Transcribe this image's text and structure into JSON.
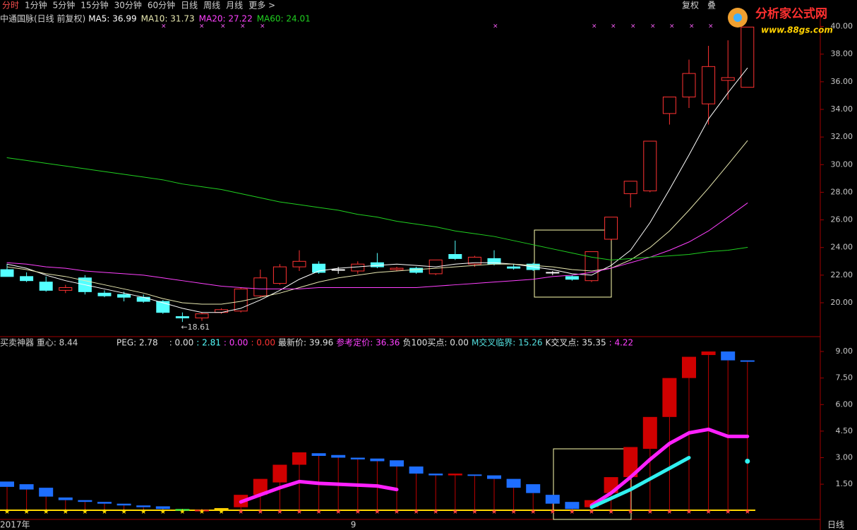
{
  "menu": {
    "tabs": [
      "分时",
      "1分钟",
      "5分钟",
      "15分钟",
      "30分钟",
      "60分钟",
      "日线",
      "周线",
      "月线",
      "更多 >"
    ],
    "right": [
      "复权",
      "叠"
    ]
  },
  "logo": {
    "name": "分析家公式网",
    "url": "www.88gs.com"
  },
  "chart_data": [
    {
      "type": "candlestick",
      "title": "中通国脉(日线 前复权)",
      "open": [
        22.4,
        21.9,
        21.5,
        20.9,
        21.8,
        20.7,
        20.6,
        20.4,
        20.1,
        19.0,
        18.9,
        19.3,
        19.4,
        20.5,
        21.4,
        22.6,
        22.8,
        22.4,
        22.3,
        22.9,
        22.4,
        22.5,
        22.1,
        23.5,
        22.8,
        23.2,
        22.6,
        22.8,
        22.2,
        21.9,
        21.6,
        24.6,
        27.9,
        28.1,
        33.7,
        34.9,
        34.4,
        36.1,
        35.6
      ],
      "high": [
        22.8,
        22.2,
        21.9,
        21.3,
        22.0,
        20.9,
        20.8,
        20.6,
        20.2,
        19.3,
        19.3,
        19.6,
        21.1,
        22.4,
        22.8,
        23.8,
        23.0,
        22.6,
        23.0,
        23.6,
        22.6,
        22.6,
        23.1,
        24.5,
        23.4,
        23.8,
        22.8,
        22.9,
        22.3,
        22.0,
        23.7,
        26.2,
        28.8,
        31.7,
        34.9,
        37.6,
        38.6,
        39.0,
        39.96
      ],
      "low": [
        21.9,
        21.5,
        20.8,
        20.7,
        20.6,
        20.4,
        20.1,
        20.0,
        19.2,
        18.61,
        18.7,
        19.2,
        19.3,
        20.4,
        21.3,
        22.3,
        22.1,
        22.1,
        22.1,
        22.5,
        22.3,
        22.1,
        22.0,
        23.1,
        22.6,
        22.7,
        22.4,
        22.3,
        22.0,
        21.6,
        21.5,
        24.5,
        26.9,
        28.0,
        32.9,
        34.1,
        32.9,
        34.7,
        35.6
      ],
      "close": [
        21.9,
        21.6,
        20.9,
        21.1,
        20.8,
        20.5,
        20.4,
        20.1,
        19.3,
        18.9,
        19.2,
        19.5,
        21.0,
        21.8,
        22.6,
        23.0,
        22.2,
        22.4,
        22.8,
        22.6,
        22.5,
        22.2,
        23.1,
        23.2,
        23.3,
        22.8,
        22.5,
        22.4,
        22.2,
        21.7,
        23.7,
        26.2,
        28.8,
        31.7,
        34.9,
        36.6,
        37.1,
        36.3,
        39.96
      ],
      "up_color": "#ff3232",
      "down_color": "#54ffff",
      "flat_color": "#ffffff",
      "series": [
        {
          "name": "MA5",
          "legend_label": "MA5: 36.99",
          "color": "#ffffff",
          "values": [
            22.8,
            22.5,
            22.0,
            21.6,
            21.3,
            21.0,
            20.7,
            20.4,
            20.0,
            19.6,
            19.3,
            19.3,
            19.6,
            20.2,
            20.9,
            21.7,
            22.3,
            22.5,
            22.6,
            22.7,
            22.8,
            22.7,
            22.6,
            22.8,
            22.9,
            22.9,
            22.8,
            22.6,
            22.4,
            22.1,
            22.0,
            22.7,
            23.8,
            25.8,
            28.2,
            30.7,
            33.3,
            35.2,
            36.99
          ]
        },
        {
          "name": "MA10",
          "legend_label": "MA10: 31.73",
          "color": "#e8e8b0",
          "values": [
            22.6,
            22.4,
            22.1,
            21.9,
            21.6,
            21.3,
            21.0,
            20.7,
            20.3,
            20.0,
            19.9,
            19.9,
            20.1,
            20.4,
            20.7,
            21.1,
            21.5,
            21.8,
            22.0,
            22.2,
            22.3,
            22.4,
            22.5,
            22.6,
            22.7,
            22.8,
            22.8,
            22.7,
            22.6,
            22.4,
            22.3,
            22.5,
            23.1,
            24.0,
            25.2,
            26.7,
            28.3,
            30.0,
            31.73
          ]
        },
        {
          "name": "MA20",
          "legend_label": "MA20: 27.22",
          "color": "#ff40ff",
          "values": [
            22.9,
            22.8,
            22.6,
            22.5,
            22.3,
            22.2,
            22.1,
            22.0,
            21.8,
            21.6,
            21.4,
            21.2,
            21.1,
            21.0,
            21.0,
            21.0,
            21.1,
            21.1,
            21.1,
            21.1,
            21.1,
            21.1,
            21.2,
            21.3,
            21.4,
            21.5,
            21.6,
            21.7,
            21.9,
            22.0,
            22.2,
            22.5,
            22.9,
            23.3,
            23.8,
            24.4,
            25.2,
            26.2,
            27.22
          ]
        },
        {
          "name": "MA60",
          "legend_label": "MA60: 24.01",
          "color": "#20d020",
          "values": [
            30.5,
            30.3,
            30.1,
            29.9,
            29.7,
            29.5,
            29.3,
            29.1,
            28.9,
            28.6,
            28.4,
            28.2,
            27.9,
            27.6,
            27.3,
            27.1,
            26.9,
            26.7,
            26.4,
            26.2,
            25.9,
            25.7,
            25.5,
            25.2,
            25.0,
            24.8,
            24.5,
            24.2,
            23.9,
            23.6,
            23.3,
            23.1,
            23.2,
            23.3,
            23.4,
            23.5,
            23.7,
            23.8,
            24.01
          ]
        }
      ],
      "annotation": "←18.61",
      "ylim": [
        17.65,
        41.0
      ],
      "yticks": [
        {
          "value": 20,
          "label": "20.00"
        },
        {
          "value": 22,
          "label": "22.00"
        },
        {
          "value": 24,
          "label": "24.00"
        },
        {
          "value": 26,
          "label": "26.00"
        },
        {
          "value": 28,
          "label": "28.00"
        },
        {
          "value": 30,
          "label": "30.00"
        },
        {
          "value": 32,
          "label": "32.00"
        },
        {
          "value": 34,
          "label": "34.00"
        },
        {
          "value": 36,
          "label": "36.00"
        },
        {
          "value": 38,
          "label": "38.00"
        },
        {
          "value": 40,
          "label": "40.00"
        }
      ]
    },
    {
      "type": "range-bar",
      "title": "买卖神器 重心: 8.44",
      "indicators": [
        {
          "text": "PEG: 2.78",
          "color": "#e0e0e0"
        },
        {
          "text": ": 0.00",
          "color": "#e0e0e0"
        },
        {
          "text": ": 2.81",
          "color": "#54ffff"
        },
        {
          "text": ": 0.00",
          "color": "#ff40ff"
        },
        {
          "text": ": 0.00",
          "color": "#ff3232"
        },
        {
          "text": "最新价: 39.96",
          "color": "#e0e0e0"
        },
        {
          "text": "参考定价: 36.36",
          "color": "#ff40ff"
        },
        {
          "text": "负100买点: 0.00",
          "color": "#e0e0e0"
        },
        {
          "text": "M交叉临界: 15.26",
          "color": "#54e0e0"
        },
        {
          "text": "K交叉点: 35.35",
          "color": "#e0e0e0"
        },
        {
          "text": ": 4.22",
          "color": "#ff40ff"
        }
      ],
      "low": [
        1.35,
        1.2,
        0.8,
        0.6,
        0.5,
        0.4,
        0.3,
        0.2,
        0.1,
        0,
        0,
        0.05,
        0.2,
        0.9,
        1.6,
        2.6,
        3.1,
        3.0,
        2.9,
        2.8,
        2.5,
        2.1,
        2.0,
        2.0,
        2.0,
        1.8,
        1.3,
        1.0,
        0.4,
        0.1,
        0.2,
        1.0,
        1.9,
        3.5,
        5.3,
        7.5,
        8.8,
        8.5,
        8.45
      ],
      "high": [
        1.65,
        1.5,
        1.3,
        0.75,
        0.6,
        0.5,
        0.4,
        0.3,
        0.25,
        0.1,
        0.05,
        0.15,
        0.9,
        1.8,
        2.6,
        3.3,
        3.25,
        3.15,
        3.0,
        2.95,
        2.85,
        2.5,
        2.1,
        2.1,
        2.05,
        2.0,
        1.8,
        1.5,
        0.9,
        0.5,
        0.6,
        1.9,
        3.6,
        5.3,
        7.5,
        8.7,
        9.0,
        9.0,
        8.5
      ],
      "colors": [
        "#1e6eff",
        "#1e6eff",
        "#1e6eff",
        "#1e6eff",
        "#1e6eff",
        "#1e6eff",
        "#1e6eff",
        "#1e6eff",
        "#1e6eff",
        "#40e040",
        "#ff2020",
        "#ffd000",
        "#d00000",
        "#d00000",
        "#d00000",
        "#d00000",
        "#1e6eff",
        "#1e6eff",
        "#1e6eff",
        "#1e6eff",
        "#1e6eff",
        "#1e6eff",
        "#1e6eff",
        "#d00000",
        "#1e6eff",
        "#1e6eff",
        "#1e6eff",
        "#1e6eff",
        "#1e6eff",
        "#1e6eff",
        "#d00000",
        "#d00000",
        "#d00000",
        "#d00000",
        "#d00000",
        "#d00000",
        "#d00000",
        "#1e6eff",
        "#1e6eff"
      ],
      "series": [
        {
          "name": "M",
          "color": "#ff20ff",
          "values": [
            null,
            null,
            null,
            null,
            null,
            null,
            null,
            null,
            null,
            null,
            null,
            null,
            0.5,
            0.9,
            1.3,
            1.65,
            1.55,
            1.5,
            1.45,
            1.4,
            1.2,
            null,
            null,
            null,
            null,
            null,
            null,
            null,
            null,
            null,
            0.3,
            1.0,
            1.9,
            2.9,
            3.8,
            4.4,
            4.6,
            4.2,
            4.2
          ]
        },
        {
          "name": "K",
          "color": "#30f0f0",
          "values": [
            null,
            null,
            null,
            null,
            null,
            null,
            null,
            null,
            null,
            null,
            null,
            null,
            null,
            null,
            null,
            null,
            null,
            null,
            null,
            null,
            null,
            null,
            null,
            null,
            null,
            null,
            null,
            null,
            null,
            null,
            0.2,
            0.7,
            1.2,
            1.8,
            2.4,
            3.0,
            null,
            null,
            2.8
          ]
        }
      ],
      "categories": [
        "2017年",
        null,
        null,
        null,
        null,
        null,
        null,
        null,
        null,
        null,
        null,
        null,
        null,
        null,
        null,
        null,
        null,
        null,
        "9",
        null,
        null,
        null,
        null,
        null,
        null,
        null,
        null,
        null,
        null,
        null,
        null,
        null,
        null,
        null,
        null,
        null,
        null,
        null,
        null
      ],
      "period": "日线",
      "ylim": [
        -0.45,
        9.72
      ],
      "yticks": [
        {
          "value": 1.5,
          "label": "1.50"
        },
        {
          "value": 3,
          "label": "3.00"
        },
        {
          "value": 4.5,
          "label": "4.50"
        },
        {
          "value": 6,
          "label": "6.00"
        },
        {
          "value": 7.5,
          "label": "7.50"
        },
        {
          "value": 9,
          "label": "9.00"
        }
      ]
    }
  ]
}
